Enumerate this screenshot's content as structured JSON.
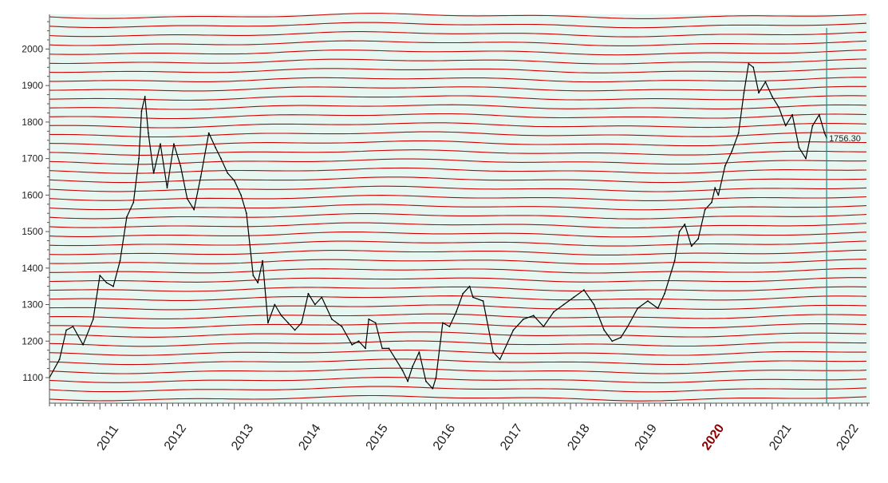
{
  "colors": {
    "background": "#e6f7f2",
    "price_line": "#000000",
    "cycle_lines": "#cc0000",
    "axis": "#555555",
    "cursor": "#1f8a8a",
    "highlight_label": "#8b0000",
    "label": "#222222"
  },
  "chart_data": {
    "type": "line",
    "title": "",
    "xlabel": "",
    "ylabel": "",
    "grid": false,
    "xlim": [
      2010.25,
      2022.45
    ],
    "ylim": [
      1030,
      2095
    ],
    "y_ticks": [
      "1100",
      "1200",
      "1300",
      "1400",
      "1500",
      "1600",
      "1700",
      "1800",
      "1900",
      "2000"
    ],
    "x_ticks": [
      "2011",
      "2012",
      "2013",
      "2014",
      "2015",
      "2016",
      "2017",
      "2018",
      "2019",
      "2020",
      "2021",
      "2022"
    ],
    "highlighted_x_tick": "2020",
    "last_price_label": "1756.30",
    "cursor_x": 2021.81,
    "overlay_cycle_lines": "red horizontal sinusoidal cycle lines spaced about 25 units apart",
    "series": [
      {
        "x": [
          2010.25,
          2010.4,
          2010.5,
          2010.6,
          2010.75,
          2010.9,
          2011.0,
          2011.1,
          2011.2,
          2011.3,
          2011.4,
          2011.5,
          2011.58,
          2011.62,
          2011.67,
          2011.72,
          2011.8,
          2011.9,
          2012.0,
          2012.1,
          2012.2,
          2012.3,
          2012.4,
          2012.5,
          2012.62,
          2012.72,
          2012.8,
          2012.9,
          2013.0,
          2013.1,
          2013.18,
          2013.28,
          2013.35,
          2013.42,
          2013.5,
          2013.6,
          2013.7,
          2013.8,
          2013.9,
          2014.0,
          2014.1,
          2014.2,
          2014.3,
          2014.45,
          2014.6,
          2014.75,
          2014.85,
          2014.95,
          2015.0,
          2015.1,
          2015.2,
          2015.3,
          2015.4,
          2015.5,
          2015.58,
          2015.65,
          2015.75,
          2015.85,
          2015.95,
          2016.0,
          2016.1,
          2016.2,
          2016.3,
          2016.4,
          2016.5,
          2016.55,
          2016.7,
          2016.85,
          2016.95,
          2017.0,
          2017.15,
          2017.3,
          2017.45,
          2017.6,
          2017.75,
          2017.9,
          2018.05,
          2018.2,
          2018.35,
          2018.5,
          2018.62,
          2018.75,
          2018.85,
          2019.0,
          2019.15,
          2019.3,
          2019.4,
          2019.5,
          2019.55,
          2019.62,
          2019.7,
          2019.8,
          2019.9,
          2020.0,
          2020.1,
          2020.15,
          2020.2,
          2020.3,
          2020.4,
          2020.5,
          2020.58,
          2020.65,
          2020.72,
          2020.8,
          2020.9,
          2021.0,
          2021.1,
          2021.2,
          2021.3,
          2021.4,
          2021.5,
          2021.6,
          2021.7,
          2021.78,
          2021.81
        ],
        "values": [
          1100,
          1150,
          1230,
          1240,
          1190,
          1260,
          1380,
          1360,
          1350,
          1420,
          1540,
          1580,
          1700,
          1830,
          1870,
          1770,
          1660,
          1740,
          1620,
          1740,
          1680,
          1590,
          1560,
          1650,
          1770,
          1730,
          1700,
          1660,
          1640,
          1600,
          1550,
          1380,
          1360,
          1420,
          1250,
          1300,
          1270,
          1250,
          1230,
          1250,
          1330,
          1300,
          1320,
          1260,
          1240,
          1190,
          1200,
          1180,
          1260,
          1250,
          1180,
          1180,
          1150,
          1120,
          1090,
          1130,
          1170,
          1090,
          1070,
          1100,
          1250,
          1240,
          1280,
          1330,
          1350,
          1320,
          1310,
          1170,
          1150,
          1170,
          1230,
          1260,
          1270,
          1240,
          1280,
          1300,
          1320,
          1340,
          1300,
          1230,
          1200,
          1210,
          1240,
          1290,
          1310,
          1290,
          1330,
          1390,
          1420,
          1500,
          1520,
          1460,
          1480,
          1560,
          1580,
          1620,
          1600,
          1680,
          1720,
          1770,
          1880,
          1960,
          1950,
          1880,
          1910,
          1870,
          1840,
          1790,
          1820,
          1730,
          1700,
          1790,
          1820,
          1770,
          1756.3
        ]
      }
    ]
  }
}
